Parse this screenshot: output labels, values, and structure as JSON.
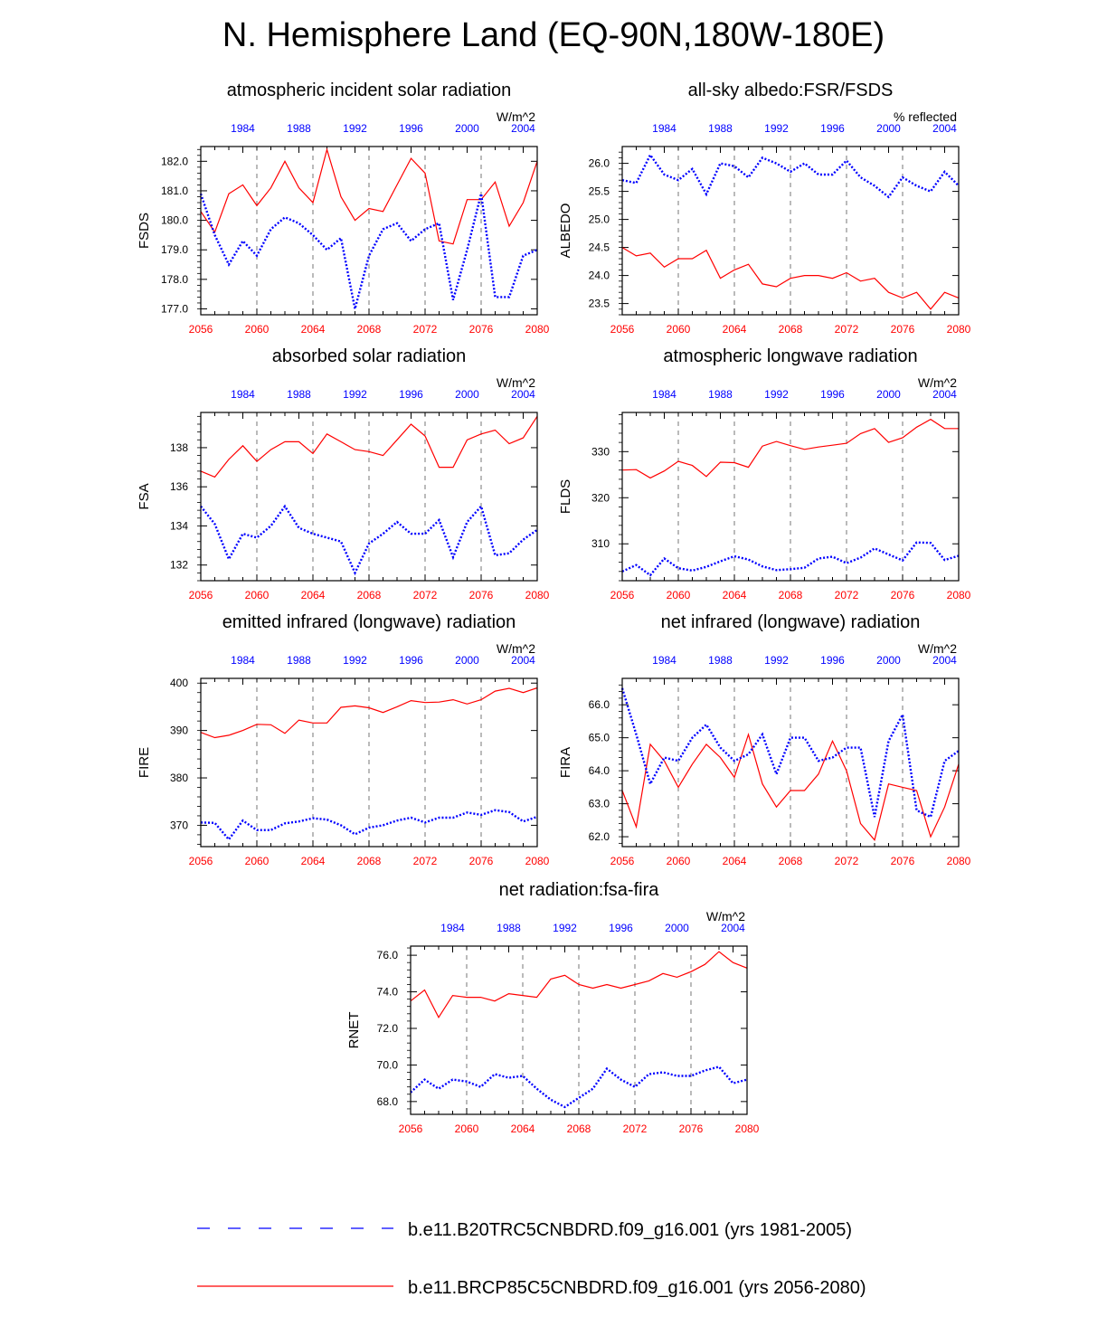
{
  "title": "N. Hemisphere Land (EQ-90N,180W-180E)",
  "colors": {
    "historical": "#0000ff",
    "future": "#ff0000"
  },
  "legend": {
    "historical": "b.e11.B20TRC5CNBDRD.f09_g16.001 (yrs 1981-2005)",
    "future": "b.e11.BRCP85C5CNBDRD.f09_g16.001 (yrs 2056-2080)"
  },
  "chart_data": [
    {
      "type": "line",
      "title": "atmospheric incident solar radiation",
      "ylabel": "FSDS",
      "units": "W/m^2",
      "x_bottom": {
        "min": 2056,
        "max": 2080,
        "ticks": [
          2056,
          2060,
          2064,
          2068,
          2072,
          2076,
          2080
        ]
      },
      "x_top": {
        "min": 1981,
        "max": 2005,
        "ticks": [
          1984,
          1988,
          1992,
          1996,
          2000,
          2004
        ]
      },
      "ylim": [
        176.8,
        182.5
      ],
      "yticks": [
        177.0,
        178.0,
        179.0,
        180.0,
        181.0,
        182.0
      ],
      "ytick_labels": [
        "177.0",
        "178.0",
        "179.0",
        "180.0",
        "181.0",
        "182.0"
      ],
      "series": [
        {
          "values": [
            180.9,
            179.5,
            178.5,
            179.3,
            178.8,
            179.7,
            180.1,
            179.9,
            179.5,
            179.0,
            179.4,
            177.0,
            178.8,
            179.7,
            179.9,
            179.3,
            179.7,
            179.9,
            177.3,
            179.0,
            180.9,
            177.4,
            177.4,
            178.8,
            179.0
          ]
        },
        {
          "values": [
            180.3,
            179.6,
            180.9,
            181.2,
            180.5,
            181.1,
            182.0,
            181.1,
            180.6,
            182.4,
            180.8,
            180.0,
            180.4,
            180.3,
            181.2,
            182.1,
            181.6,
            179.3,
            179.2,
            180.7,
            180.7,
            181.3,
            179.8,
            180.6,
            182.0
          ]
        }
      ]
    },
    {
      "type": "line",
      "title": "all-sky albedo:FSR/FSDS",
      "ylabel": "ALBEDO",
      "units": "% reflected",
      "x_bottom": {
        "min": 2056,
        "max": 2080,
        "ticks": [
          2056,
          2060,
          2064,
          2068,
          2072,
          2076,
          2080
        ]
      },
      "x_top": {
        "min": 1981,
        "max": 2005,
        "ticks": [
          1984,
          1988,
          1992,
          1996,
          2000,
          2004
        ]
      },
      "ylim": [
        23.3,
        26.3
      ],
      "yticks": [
        23.5,
        24.0,
        24.5,
        25.0,
        25.5,
        26.0
      ],
      "ytick_labels": [
        "23.5",
        "24.0",
        "24.5",
        "25.0",
        "25.5",
        "26.0"
      ],
      "series": [
        {
          "values": [
            25.7,
            25.65,
            26.15,
            25.8,
            25.7,
            25.9,
            25.45,
            26.0,
            25.95,
            25.75,
            26.1,
            26.0,
            25.85,
            26.0,
            25.8,
            25.8,
            26.05,
            25.75,
            25.6,
            25.4,
            25.75,
            25.6,
            25.5,
            25.85,
            25.6
          ]
        },
        {
          "values": [
            24.5,
            24.35,
            24.4,
            24.15,
            24.3,
            24.3,
            24.45,
            23.95,
            24.1,
            24.2,
            23.85,
            23.8,
            23.95,
            24.0,
            24.0,
            23.95,
            24.05,
            23.9,
            23.95,
            23.7,
            23.6,
            23.7,
            23.4,
            23.7,
            23.6
          ]
        }
      ]
    },
    {
      "type": "line",
      "title": "absorbed solar radiation",
      "ylabel": "FSA",
      "units": "W/m^2",
      "x_bottom": {
        "min": 2056,
        "max": 2080,
        "ticks": [
          2056,
          2060,
          2064,
          2068,
          2072,
          2076,
          2080
        ]
      },
      "x_top": {
        "min": 1981,
        "max": 2005,
        "ticks": [
          1984,
          1988,
          1992,
          1996,
          2000,
          2004
        ]
      },
      "ylim": [
        131.2,
        139.8
      ],
      "yticks": [
        132,
        134,
        136,
        138
      ],
      "ytick_labels": [
        "132",
        "134",
        "136",
        "138"
      ],
      "series": [
        {
          "values": [
            135.0,
            134.1,
            132.3,
            133.6,
            133.4,
            134.0,
            135.0,
            133.9,
            133.6,
            133.4,
            133.2,
            131.6,
            133.1,
            133.6,
            134.2,
            133.6,
            133.6,
            134.3,
            132.4,
            134.2,
            135.0,
            132.5,
            132.6,
            133.3,
            133.8
          ]
        },
        {
          "values": [
            136.8,
            136.5,
            137.4,
            138.1,
            137.3,
            137.9,
            138.3,
            138.3,
            137.7,
            138.7,
            138.3,
            137.9,
            137.8,
            137.6,
            138.4,
            139.2,
            138.6,
            137.0,
            137.0,
            138.4,
            138.7,
            138.9,
            138.2,
            138.5,
            139.6
          ]
        }
      ]
    },
    {
      "type": "line",
      "title": "atmospheric longwave radiation",
      "ylabel": "FLDS",
      "units": "W/m^2",
      "x_bottom": {
        "min": 2056,
        "max": 2080,
        "ticks": [
          2056,
          2060,
          2064,
          2068,
          2072,
          2076,
          2080
        ]
      },
      "x_top": {
        "min": 1981,
        "max": 2005,
        "ticks": [
          1984,
          1988,
          1992,
          1996,
          2000,
          2004
        ]
      },
      "ylim": [
        302,
        338.5
      ],
      "yticks": [
        310,
        320,
        330
      ],
      "ytick_labels": [
        "310",
        "320",
        "330"
      ],
      "series": [
        {
          "values": [
            304.0,
            305.4,
            303.2,
            306.8,
            304.7,
            304.2,
            305.0,
            306.2,
            307.3,
            306.6,
            305.1,
            304.3,
            304.5,
            304.8,
            306.8,
            307.2,
            305.8,
            307.0,
            309.0,
            307.7,
            306.4,
            310.3,
            310.2,
            306.5,
            307.4
          ]
        },
        {
          "values": [
            326.0,
            326.1,
            324.3,
            325.8,
            327.9,
            327.0,
            324.6,
            327.7,
            327.6,
            326.6,
            331.2,
            332.2,
            331.3,
            330.5,
            331.0,
            331.4,
            331.8,
            333.9,
            335.0,
            332.0,
            333.0,
            335.3,
            337.0,
            335.0,
            335.0
          ]
        }
      ]
    },
    {
      "type": "line",
      "title": "emitted infrared (longwave) radiation",
      "ylabel": "FIRE",
      "units": "W/m^2",
      "x_bottom": {
        "min": 2056,
        "max": 2080,
        "ticks": [
          2056,
          2060,
          2064,
          2068,
          2072,
          2076,
          2080
        ]
      },
      "x_top": {
        "min": 1981,
        "max": 2005,
        "ticks": [
          1984,
          1988,
          1992,
          1996,
          2000,
          2004
        ]
      },
      "ylim": [
        365.5,
        401
      ],
      "yticks": [
        370,
        380,
        390,
        400
      ],
      "ytick_labels": [
        "370",
        "380",
        "390",
        "400"
      ],
      "series": [
        {
          "values": [
            370.6,
            370.5,
            367.0,
            371.0,
            369.0,
            369.0,
            370.4,
            370.8,
            371.5,
            371.2,
            370.0,
            368.1,
            369.5,
            370.0,
            371.0,
            371.6,
            370.6,
            371.6,
            371.6,
            372.7,
            372.2,
            373.2,
            372.8,
            370.8,
            371.8
          ]
        },
        {
          "values": [
            389.6,
            388.5,
            389.0,
            390.0,
            391.3,
            391.2,
            389.4,
            392.2,
            391.6,
            391.6,
            394.9,
            395.2,
            394.8,
            393.8,
            395.0,
            396.3,
            395.9,
            396.0,
            396.5,
            395.6,
            396.5,
            398.3,
            398.9,
            398.0,
            399.0
          ]
        }
      ]
    },
    {
      "type": "line",
      "title": "net infrared (longwave) radiation",
      "ylabel": "FIRA",
      "units": "W/m^2",
      "x_bottom": {
        "min": 2056,
        "max": 2080,
        "ticks": [
          2056,
          2060,
          2064,
          2068,
          2072,
          2076,
          2080
        ]
      },
      "x_top": {
        "min": 1981,
        "max": 2005,
        "ticks": [
          1984,
          1988,
          1992,
          1996,
          2000,
          2004
        ]
      },
      "ylim": [
        61.7,
        66.8
      ],
      "yticks": [
        62.0,
        63.0,
        64.0,
        65.0,
        66.0
      ],
      "ytick_labels": [
        "62.0",
        "63.0",
        "64.0",
        "65.0",
        "66.0"
      ],
      "series": [
        {
          "values": [
            66.5,
            65.1,
            63.6,
            64.4,
            64.3,
            65.0,
            65.4,
            64.7,
            64.3,
            64.5,
            65.1,
            63.9,
            65.0,
            65.0,
            64.3,
            64.4,
            64.7,
            64.7,
            62.6,
            64.9,
            65.7,
            62.8,
            62.6,
            64.3,
            64.6
          ]
        },
        {
          "values": [
            63.4,
            62.3,
            64.8,
            64.3,
            63.5,
            64.2,
            64.8,
            64.4,
            63.8,
            65.1,
            63.6,
            62.9,
            63.4,
            63.4,
            63.9,
            64.9,
            64.0,
            62.4,
            61.9,
            63.6,
            63.5,
            63.4,
            62.0,
            62.9,
            64.2
          ]
        }
      ]
    },
    {
      "type": "line",
      "title": "net radiation:fsa-fira",
      "ylabel": "RNET",
      "units": "W/m^2",
      "x_bottom": {
        "min": 2056,
        "max": 2080,
        "ticks": [
          2056,
          2060,
          2064,
          2068,
          2072,
          2076,
          2080
        ]
      },
      "x_top": {
        "min": 1981,
        "max": 2005,
        "ticks": [
          1984,
          1988,
          1992,
          1996,
          2000,
          2004
        ]
      },
      "ylim": [
        67.3,
        76.5
      ],
      "yticks": [
        68.0,
        70.0,
        72.0,
        74.0,
        76.0
      ],
      "ytick_labels": [
        "68.0",
        "70.0",
        "72.0",
        "74.0",
        "76.0"
      ],
      "series": [
        {
          "values": [
            68.5,
            69.2,
            68.7,
            69.2,
            69.1,
            68.8,
            69.5,
            69.3,
            69.4,
            68.7,
            68.1,
            67.7,
            68.2,
            68.7,
            69.8,
            69.2,
            68.8,
            69.5,
            69.6,
            69.4,
            69.4,
            69.7,
            69.9,
            69.0,
            69.2
          ]
        },
        {
          "values": [
            73.5,
            74.1,
            72.6,
            73.8,
            73.7,
            73.7,
            73.5,
            73.9,
            73.8,
            73.7,
            74.7,
            74.9,
            74.4,
            74.2,
            74.4,
            74.2,
            74.4,
            74.6,
            75.0,
            74.8,
            75.1,
            75.5,
            76.2,
            75.6,
            75.3
          ]
        }
      ]
    }
  ]
}
